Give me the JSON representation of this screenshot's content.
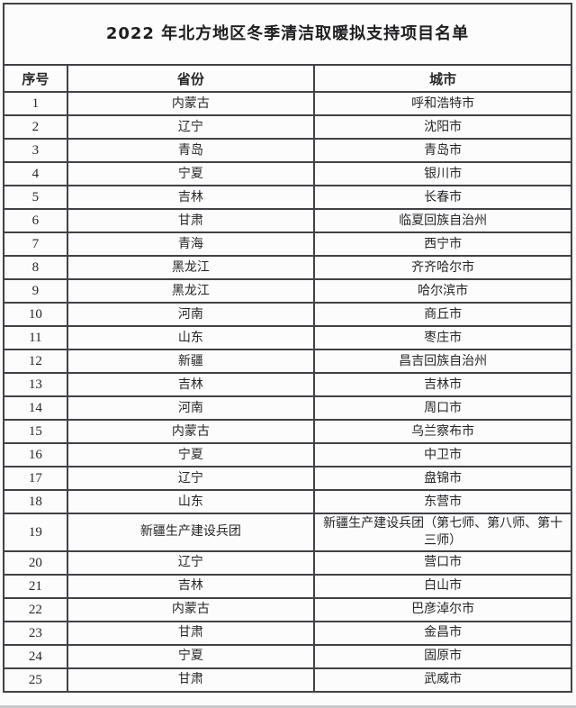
{
  "title": "2022 年北方地区冬季清洁取暖拟支持项目名单",
  "table": {
    "headers": [
      "序号",
      "省份",
      "城市"
    ],
    "rows": [
      [
        "1",
        "内蒙古",
        "呼和浩特市"
      ],
      [
        "2",
        "辽宁",
        "沈阳市"
      ],
      [
        "3",
        "青岛",
        "青岛市"
      ],
      [
        "4",
        "宁夏",
        "银川市"
      ],
      [
        "5",
        "吉林",
        "长春市"
      ],
      [
        "6",
        "甘肃",
        "临夏回族自治州"
      ],
      [
        "7",
        "青海",
        "西宁市"
      ],
      [
        "8",
        "黑龙江",
        "齐齐哈尔市"
      ],
      [
        "9",
        "黑龙江",
        "哈尔滨市"
      ],
      [
        "10",
        "河南",
        "商丘市"
      ],
      [
        "11",
        "山东",
        "枣庄市"
      ],
      [
        "12",
        "新疆",
        "昌吉回族自治州"
      ],
      [
        "13",
        "吉林",
        "吉林市"
      ],
      [
        "14",
        "河南",
        "周口市"
      ],
      [
        "15",
        "内蒙古",
        "乌兰察布市"
      ],
      [
        "16",
        "宁夏",
        "中卫市"
      ],
      [
        "17",
        "辽宁",
        "盘锦市"
      ],
      [
        "18",
        "山东",
        "东营市"
      ],
      [
        "19",
        "新疆生产建设兵团",
        "新疆生产建设兵团（第七师、第八师、第十三师）"
      ],
      [
        "20",
        "辽宁",
        "营口市"
      ],
      [
        "21",
        "吉林",
        "白山市"
      ],
      [
        "22",
        "内蒙古",
        "巴彦淖尔市"
      ],
      [
        "23",
        "甘肃",
        "金昌市"
      ],
      [
        "24",
        "宁夏",
        "固原市"
      ],
      [
        "25",
        "甘肃",
        "武威市"
      ]
    ]
  },
  "colors": {
    "border": "#424246",
    "text": "#262628",
    "cell_background": "#fcfcfd"
  }
}
